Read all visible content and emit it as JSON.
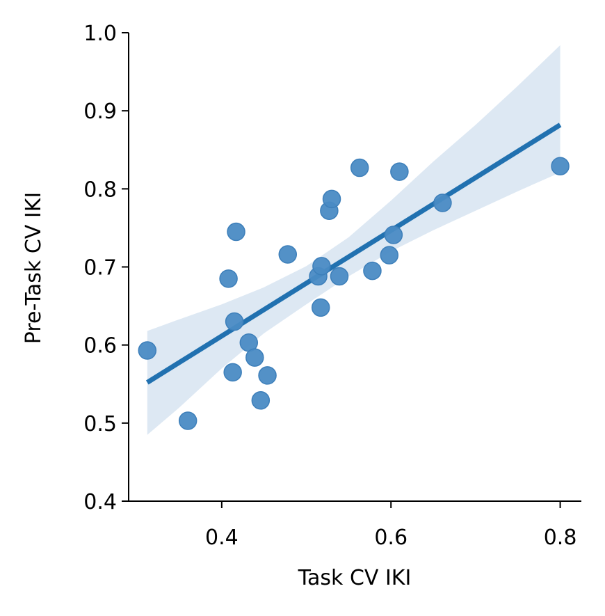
{
  "chart_data": {
    "type": "scatter",
    "title": "",
    "xlabel": "Task CV IKI",
    "ylabel": "Pre-Task CV IKI",
    "xlim": [
      0.29,
      0.825
    ],
    "ylim": [
      0.4,
      1.0
    ],
    "xticks": [
      0.4,
      0.6,
      0.8
    ],
    "xtick_labels": [
      "0.4",
      "0.6",
      "0.8"
    ],
    "yticks": [
      0.4,
      0.5,
      0.6,
      0.7,
      0.8,
      0.9,
      1.0
    ],
    "ytick_labels": [
      "0.4",
      "0.5",
      "0.6",
      "0.7",
      "0.8",
      "0.9",
      "1.0"
    ],
    "grid": false,
    "point_color": "#4a8bc4",
    "line_color": "#2171b0",
    "band_color": "#dde8f3",
    "points": [
      {
        "x": 0.312,
        "y": 0.593
      },
      {
        "x": 0.36,
        "y": 0.503
      },
      {
        "x": 0.408,
        "y": 0.685
      },
      {
        "x": 0.413,
        "y": 0.565
      },
      {
        "x": 0.415,
        "y": 0.63
      },
      {
        "x": 0.417,
        "y": 0.745
      },
      {
        "x": 0.432,
        "y": 0.603
      },
      {
        "x": 0.439,
        "y": 0.584
      },
      {
        "x": 0.446,
        "y": 0.529
      },
      {
        "x": 0.454,
        "y": 0.561
      },
      {
        "x": 0.478,
        "y": 0.716
      },
      {
        "x": 0.514,
        "y": 0.688
      },
      {
        "x": 0.517,
        "y": 0.648
      },
      {
        "x": 0.518,
        "y": 0.701
      },
      {
        "x": 0.527,
        "y": 0.772
      },
      {
        "x": 0.53,
        "y": 0.787
      },
      {
        "x": 0.539,
        "y": 0.688
      },
      {
        "x": 0.563,
        "y": 0.827
      },
      {
        "x": 0.578,
        "y": 0.695
      },
      {
        "x": 0.598,
        "y": 0.715
      },
      {
        "x": 0.603,
        "y": 0.741
      },
      {
        "x": 0.61,
        "y": 0.822
      },
      {
        "x": 0.661,
        "y": 0.782
      },
      {
        "x": 0.8,
        "y": 0.829
      }
    ],
    "regression": {
      "x": [
        0.312,
        0.8
      ],
      "y": [
        0.552,
        0.882
      ]
    },
    "confidence_band": {
      "x": [
        0.312,
        0.35,
        0.4,
        0.45,
        0.5,
        0.55,
        0.6,
        0.65,
        0.7,
        0.75,
        0.8
      ],
      "upper": [
        0.618,
        0.633,
        0.652,
        0.674,
        0.701,
        0.738,
        0.785,
        0.835,
        0.882,
        0.932,
        0.984
      ],
      "lower": [
        0.485,
        0.52,
        0.57,
        0.615,
        0.652,
        0.688,
        0.72,
        0.747,
        0.772,
        0.797,
        0.821
      ]
    }
  }
}
